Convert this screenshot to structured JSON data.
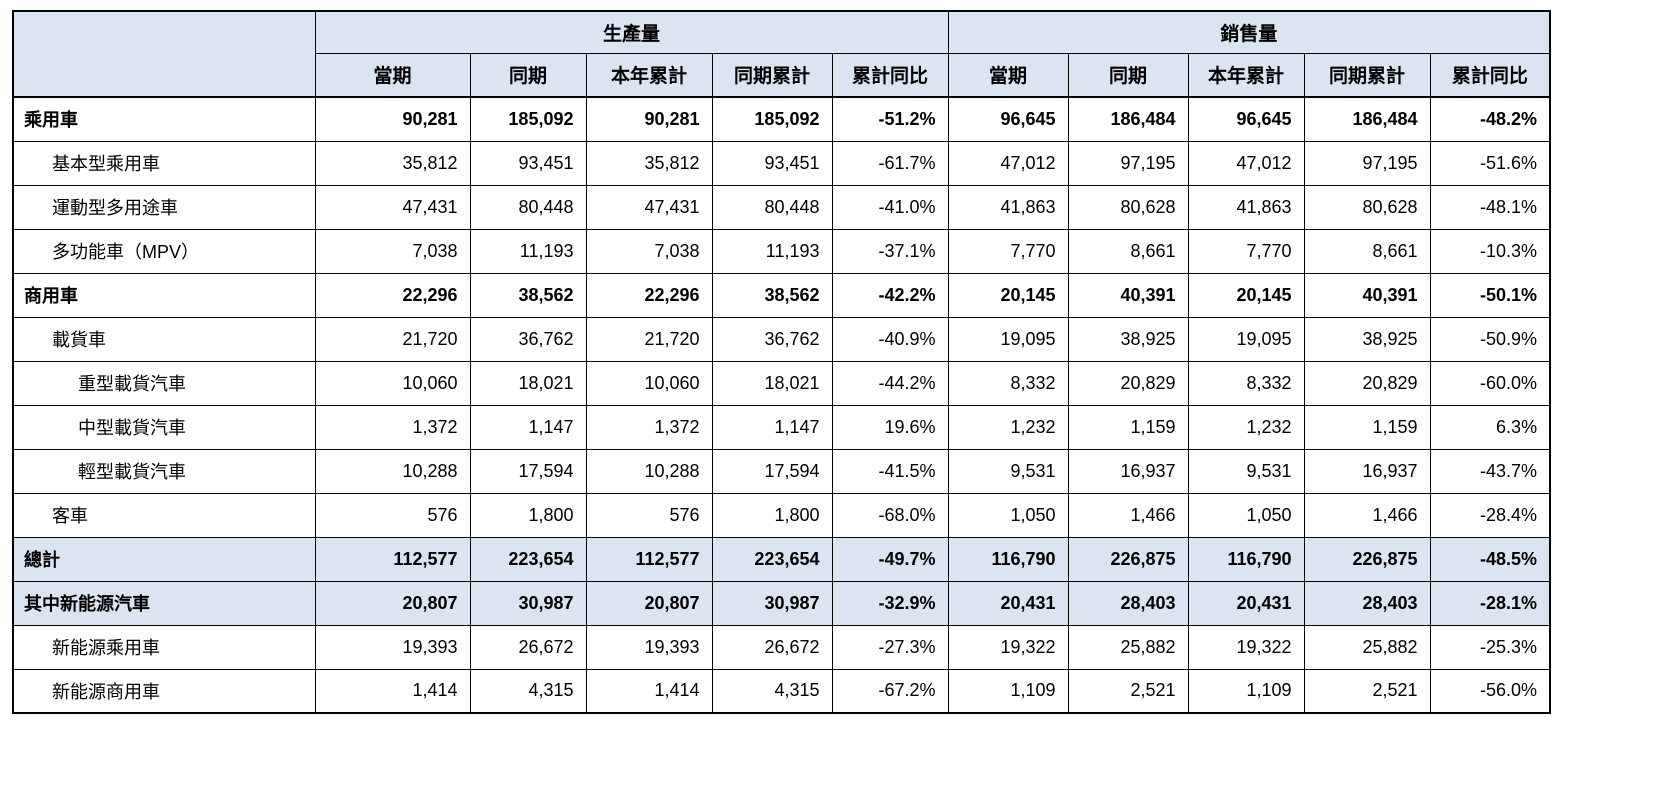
{
  "colors": {
    "header_bg": "#dbe5f1",
    "highlight_bg": "#dbe5f1",
    "border": "#000000",
    "text": "#000000"
  },
  "chart_data": {
    "type": "table",
    "header": {
      "corner": "",
      "groups": [
        {
          "label": "生產量",
          "columns": [
            "當期",
            "同期",
            "本年累計",
            "同期累計",
            "累計同比"
          ]
        },
        {
          "label": "銷售量",
          "columns": [
            "當期",
            "同期",
            "本年累計",
            "同期累計",
            "累計同比"
          ]
        }
      ]
    },
    "rows": [
      {
        "label": "乘用車",
        "indent": 0,
        "bold": true,
        "highlight": false,
        "values": [
          "90,281",
          "185,092",
          "90,281",
          "185,092",
          "-51.2%",
          "96,645",
          "186,484",
          "96,645",
          "186,484",
          "-48.2%"
        ]
      },
      {
        "label": "基本型乘用車",
        "indent": 1,
        "bold": false,
        "highlight": false,
        "values": [
          "35,812",
          "93,451",
          "35,812",
          "93,451",
          "-61.7%",
          "47,012",
          "97,195",
          "47,012",
          "97,195",
          "-51.6%"
        ]
      },
      {
        "label": "運動型多用途車",
        "indent": 1,
        "bold": false,
        "highlight": false,
        "values": [
          "47,431",
          "80,448",
          "47,431",
          "80,448",
          "-41.0%",
          "41,863",
          "80,628",
          "41,863",
          "80,628",
          "-48.1%"
        ]
      },
      {
        "label": "多功能車（MPV）",
        "indent": 1,
        "bold": false,
        "highlight": false,
        "values": [
          "7,038",
          "11,193",
          "7,038",
          "11,193",
          "-37.1%",
          "7,770",
          "8,661",
          "7,770",
          "8,661",
          "-10.3%"
        ]
      },
      {
        "label": "商用車",
        "indent": 0,
        "bold": true,
        "highlight": false,
        "values": [
          "22,296",
          "38,562",
          "22,296",
          "38,562",
          "-42.2%",
          "20,145",
          "40,391",
          "20,145",
          "40,391",
          "-50.1%"
        ]
      },
      {
        "label": "載貨車",
        "indent": 1,
        "bold": false,
        "highlight": false,
        "values": [
          "21,720",
          "36,762",
          "21,720",
          "36,762",
          "-40.9%",
          "19,095",
          "38,925",
          "19,095",
          "38,925",
          "-50.9%"
        ]
      },
      {
        "label": "重型載貨汽車",
        "indent": 2,
        "bold": false,
        "highlight": false,
        "values": [
          "10,060",
          "18,021",
          "10,060",
          "18,021",
          "-44.2%",
          "8,332",
          "20,829",
          "8,332",
          "20,829",
          "-60.0%"
        ]
      },
      {
        "label": "中型載貨汽車",
        "indent": 2,
        "bold": false,
        "highlight": false,
        "values": [
          "1,372",
          "1,147",
          "1,372",
          "1,147",
          "19.6%",
          "1,232",
          "1,159",
          "1,232",
          "1,159",
          "6.3%"
        ]
      },
      {
        "label": "輕型載貨汽車",
        "indent": 2,
        "bold": false,
        "highlight": false,
        "values": [
          "10,288",
          "17,594",
          "10,288",
          "17,594",
          "-41.5%",
          "9,531",
          "16,937",
          "9,531",
          "16,937",
          "-43.7%"
        ]
      },
      {
        "label": "客車",
        "indent": 1,
        "bold": false,
        "highlight": false,
        "values": [
          "576",
          "1,800",
          "576",
          "1,800",
          "-68.0%",
          "1,050",
          "1,466",
          "1,050",
          "1,466",
          "-28.4%"
        ]
      },
      {
        "label": "總計",
        "indent": 0,
        "bold": true,
        "highlight": true,
        "values": [
          "112,577",
          "223,654",
          "112,577",
          "223,654",
          "-49.7%",
          "116,790",
          "226,875",
          "116,790",
          "226,875",
          "-48.5%"
        ]
      },
      {
        "label": "其中新能源汽車",
        "indent": 0,
        "bold": true,
        "highlight": true,
        "values": [
          "20,807",
          "30,987",
          "20,807",
          "30,987",
          "-32.9%",
          "20,431",
          "28,403",
          "20,431",
          "28,403",
          "-28.1%"
        ]
      },
      {
        "label": "新能源乘用車",
        "indent": 1,
        "bold": false,
        "highlight": false,
        "values": [
          "19,393",
          "26,672",
          "19,393",
          "26,672",
          "-27.3%",
          "19,322",
          "25,882",
          "19,322",
          "25,882",
          "-25.3%"
        ]
      },
      {
        "label": "新能源商用車",
        "indent": 1,
        "bold": false,
        "highlight": false,
        "values": [
          "1,414",
          "4,315",
          "1,414",
          "4,315",
          "-67.2%",
          "1,109",
          "2,521",
          "1,109",
          "2,521",
          "-56.0%"
        ]
      }
    ]
  }
}
